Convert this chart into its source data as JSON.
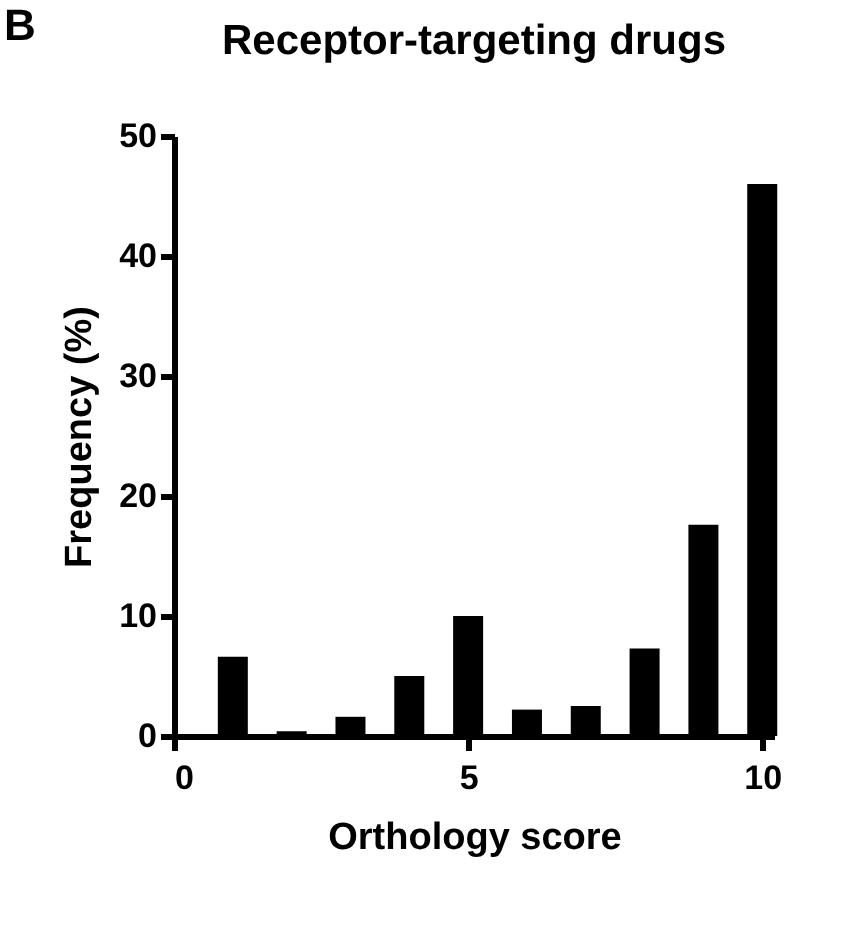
{
  "chart_data": {
    "type": "bar",
    "title": "Receptor-targeting drugs",
    "xlabel": "Orthology score",
    "ylabel": "Frequency (%)",
    "annotations": [
      "B"
    ],
    "x": [
      1,
      2,
      3,
      4,
      5,
      6,
      7,
      8,
      9,
      10
    ],
    "values": [
      6.6,
      0.4,
      1.6,
      5.0,
      10.0,
      2.2,
      2.5,
      7.3,
      17.6,
      46.0
    ],
    "color": "#000000",
    "xlim": [
      0,
      10.2
    ],
    "xticks": [
      0,
      5,
      10
    ],
    "ylim": [
      0,
      50
    ],
    "yticks": [
      0,
      10,
      20,
      30,
      40,
      50
    ],
    "grid": false
  }
}
